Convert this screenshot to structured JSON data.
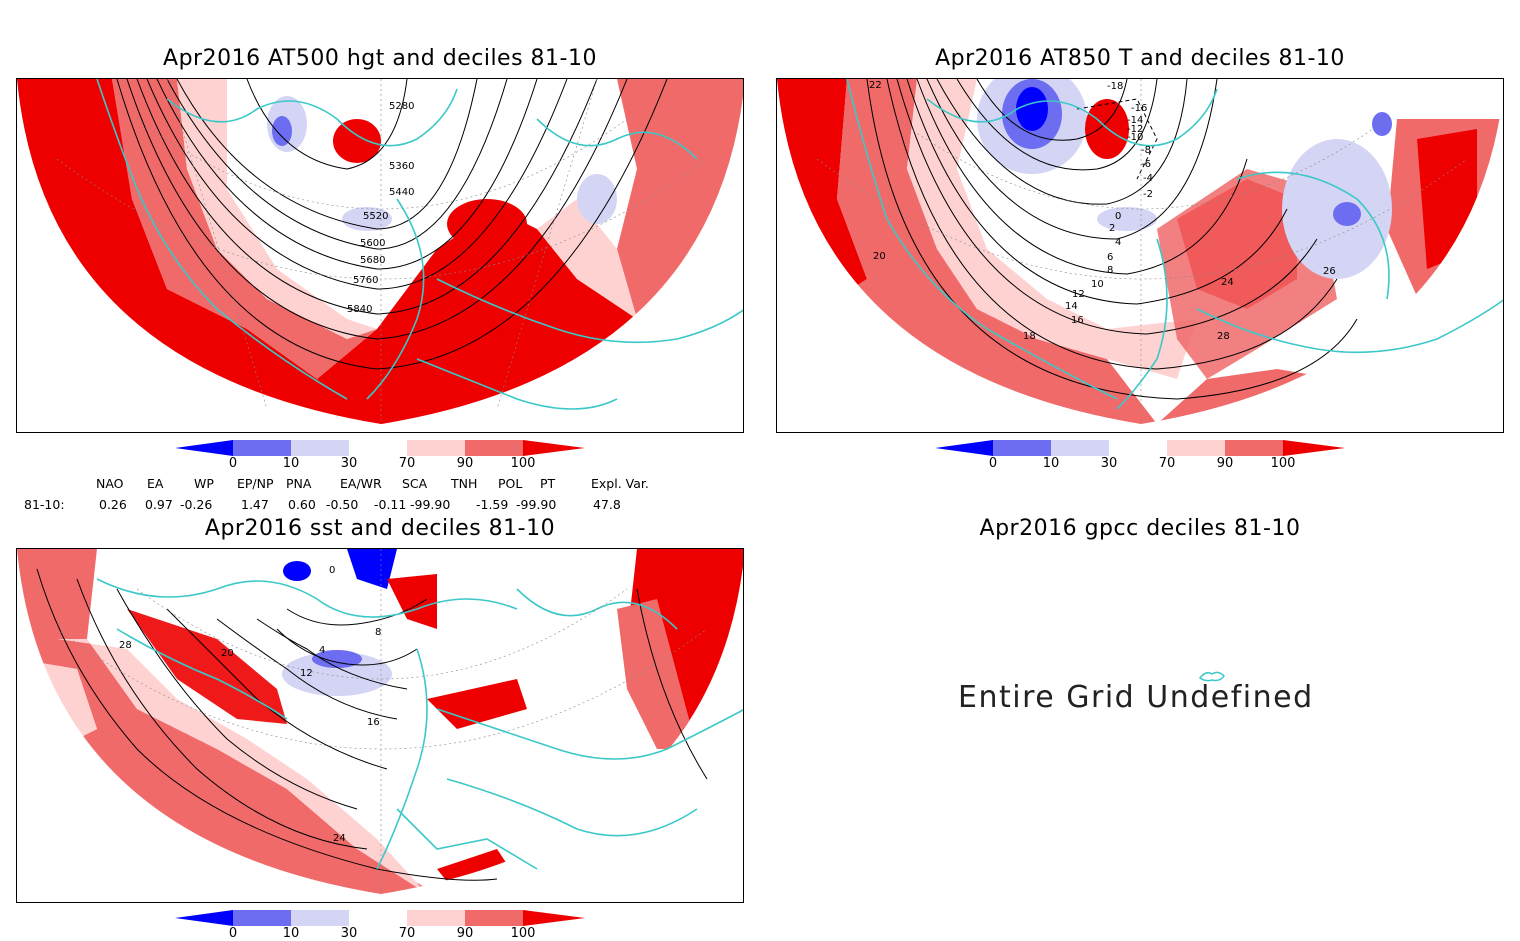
{
  "panels": {
    "hgt": {
      "title": "Apr2016 AT500 hgt and deciles 81-10",
      "contour_labels": [
        "5280",
        "5360",
        "5440",
        "5520",
        "5600",
        "5680",
        "5760",
        "5840"
      ]
    },
    "t850": {
      "title": "Apr2016 AT850 T and deciles 81-10",
      "contour_labels": [
        "-18",
        "-16",
        "-14",
        "-12",
        "-10",
        "-8",
        "-6",
        "-4",
        "-2",
        "0",
        "2",
        "4",
        "6",
        "8",
        "10",
        "12",
        "14",
        "16",
        "18",
        "20",
        "22",
        "24",
        "26",
        "28"
      ]
    },
    "sst": {
      "title": "Apr2016 sst and deciles 81-10",
      "contour_labels": [
        "0",
        "4",
        "8",
        "12",
        "16",
        "20",
        "24",
        "28"
      ]
    },
    "gpcc": {
      "title": "Apr2016 gpcc deciles 81-10",
      "message": "Entire Grid Undefined"
    }
  },
  "colorbar": {
    "labels": [
      "0",
      "10",
      "30",
      "70",
      "90",
      "100"
    ],
    "colors": [
      "#0000ff",
      "#6d6df2",
      "#d4d4f5",
      "#ffffff",
      "#ffd2d2",
      "#f06a6a",
      "#ee0000"
    ]
  },
  "indices": {
    "headers": [
      "NAO",
      "EA",
      "WP",
      "EP/NP",
      "PNA",
      "EA/WR",
      "SCA",
      "TNH",
      "POL",
      "PT",
      "Expl. Var."
    ],
    "row_label": "81-10:",
    "values": [
      "0.26",
      "0.97",
      "-0.26",
      "1.47",
      "0.60",
      "-0.50",
      "-0.11",
      "-99.90",
      "-1.59",
      "-99.90",
      "47.8"
    ]
  },
  "colors": {
    "coast": "#3cc8c8",
    "contour": "#000000",
    "deep_red": "#ee0000",
    "mid_red": "#f06a6a",
    "light_red": "#ffd2d2",
    "light_blue": "#d4d4f5",
    "mid_blue": "#6d6df2",
    "deep_blue": "#0000ff"
  }
}
